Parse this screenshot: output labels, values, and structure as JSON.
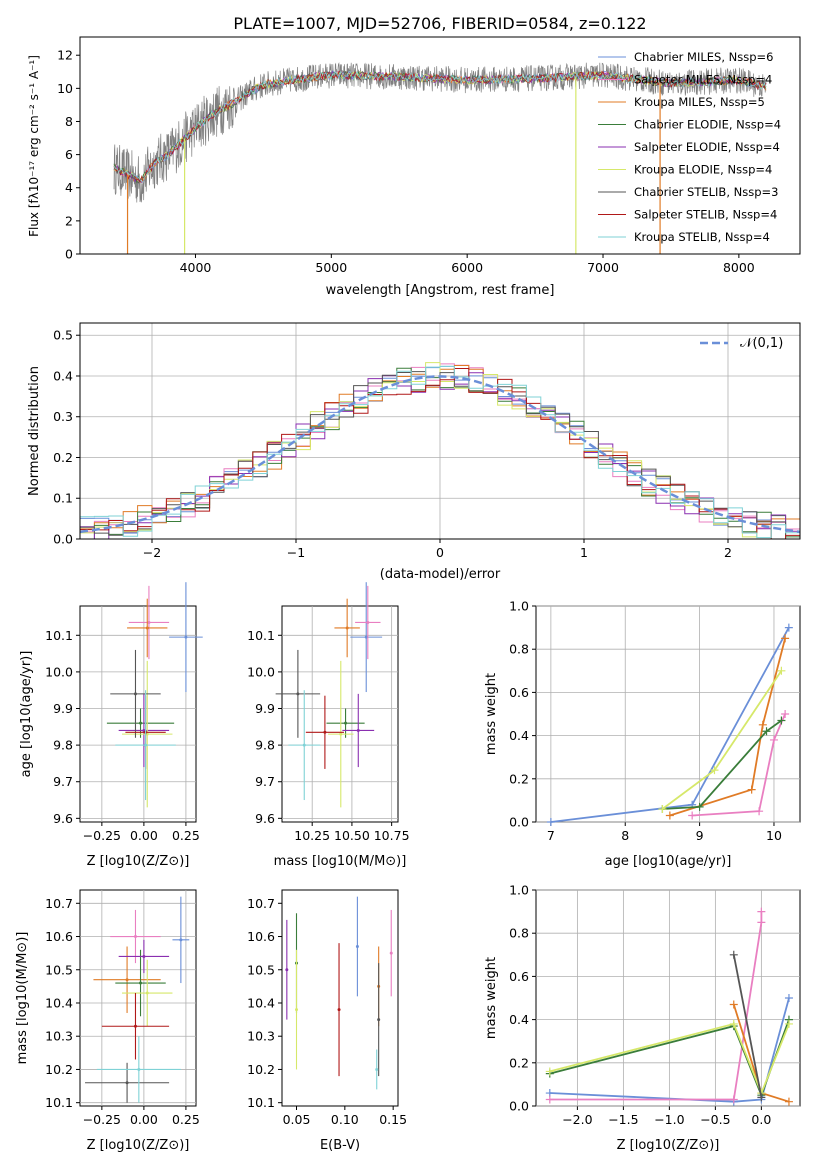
{
  "title": "PLATE=1007, MJD=52706, FIBERID=0584, z=0.122",
  "colors": {
    "chabrier_miles": "#6a8fd8",
    "salpeter_miles": "#e97fc1",
    "kroupa_miles": "#e07b26",
    "chabrier_elodie": "#3a7d3a",
    "salpeter_elodie": "#8a2fb0",
    "kroupa_elodie": "#d6e86a",
    "chabrier_stelib": "#555555",
    "salpeter_stelib": "#b01818",
    "kroupa_stelib": "#7fd2d6",
    "data": "#808080",
    "grid": "#b0b0b0"
  },
  "chart_data": [
    {
      "type": "line",
      "id": "spectrum",
      "xlabel": "wavelength [Angstrom, rest frame]",
      "ylabel": "Flux [f",
      "ylabel_full": "Flux [fλ10⁻¹⁷ erg cm⁻² s⁻¹ A⁻¹]",
      "xlim": [
        3150,
        8450
      ],
      "ylim": [
        0,
        13.1
      ],
      "xticks": [
        "4000",
        "5000",
        "6000",
        "7000",
        "8000"
      ],
      "yticks": [
        "0",
        "2",
        "4",
        "6",
        "8",
        "10",
        "12"
      ],
      "continuum": {
        "x": [
          3400,
          3500,
          3600,
          3700,
          3800,
          3900,
          4000,
          4100,
          4200,
          4300,
          4400,
          4500,
          4700,
          5000,
          5500,
          6000,
          6500,
          7000,
          7500,
          8000,
          8200
        ],
        "y": [
          5.2,
          4.8,
          4.4,
          5.5,
          6.0,
          6.8,
          7.6,
          8.3,
          8.8,
          9.2,
          9.8,
          10.2,
          10.5,
          10.8,
          10.7,
          10.5,
          10.6,
          10.8,
          10.3,
          10.5,
          10.1
        ]
      },
      "legend_position": "upper right",
      "legend": [
        "Chabrier MILES, N_SSP=6",
        "Salpeter MILES, N_SSP=4",
        "Kroupa MILES, N_SSP=5",
        "Chabrier ELODIE, N_SSP=4",
        "Salpeter ELODIE, N_SSP=4",
        "Kroupa ELODIE, N_SSP=4",
        "Chabrier STELIB, N_SSP=3",
        "Salpeter STELIB, N_SSP=4",
        "Kroupa STELIB, N_SSP=4"
      ]
    },
    {
      "type": "line",
      "id": "residuals",
      "xlabel": "(data-model)/error",
      "ylabel": "Normed distribution",
      "xlim": [
        -2.5,
        2.5
      ],
      "ylim": [
        0,
        0.53
      ],
      "xticks": [
        "−2",
        "−1",
        "0",
        "1",
        "2"
      ],
      "yticks": [
        "0.0",
        "0.1",
        "0.2",
        "0.3",
        "0.4",
        "0.5"
      ],
      "legend": [
        "𝒩(0,1)"
      ],
      "legend_position": "upper right"
    },
    {
      "type": "scatter",
      "id": "age_vs_Z",
      "xlabel": "Z [log10(Z/Z⊙)]",
      "ylabel": "age  [log10(age/yr)]",
      "xlim": [
        -0.38,
        0.31
      ],
      "ylim": [
        9.59,
        10.18
      ],
      "xticks": [
        "−0.25",
        "0.00",
        "0.25"
      ],
      "yticks": [
        "9.6",
        "9.7",
        "9.8",
        "9.9",
        "10.0",
        "10.1"
      ],
      "points": [
        {
          "x": 0.25,
          "y": 10.095
        },
        {
          "x": 0.03,
          "y": 10.135
        },
        {
          "x": 0.02,
          "y": 10.12
        },
        {
          "x": -0.02,
          "y": 9.86
        },
        {
          "x": 0.0,
          "y": 9.84
        },
        {
          "x": 0.02,
          "y": 9.83
        },
        {
          "x": -0.05,
          "y": 9.94
        },
        {
          "x": 0.01,
          "y": 9.835
        },
        {
          "x": 0.01,
          "y": 9.8
        }
      ]
    },
    {
      "type": "scatter",
      "id": "age_vs_mass",
      "xlabel": "mass [log10(M/M⊙)]",
      "ylabel": "",
      "xlim": [
        10.06,
        10.79
      ],
      "ylim": [
        9.59,
        10.18
      ],
      "xticks": [
        "10.25",
        "10.50",
        "10.75"
      ],
      "yticks": [
        "9.6",
        "9.7",
        "9.8",
        "9.9",
        "10.0",
        "10.1"
      ],
      "points": [
        {
          "x": 10.59,
          "y": 10.095
        },
        {
          "x": 10.6,
          "y": 10.135
        },
        {
          "x": 10.47,
          "y": 10.12
        },
        {
          "x": 10.46,
          "y": 9.86
        },
        {
          "x": 10.54,
          "y": 9.84
        },
        {
          "x": 10.43,
          "y": 9.83
        },
        {
          "x": 10.16,
          "y": 9.94
        },
        {
          "x": 10.33,
          "y": 9.835
        },
        {
          "x": 10.2,
          "y": 9.8
        }
      ]
    },
    {
      "type": "line",
      "id": "mass_weight_vs_age",
      "xlabel": "age  [log10(age/yr)]",
      "ylabel": "mass weight",
      "xlim": [
        6.8,
        10.35
      ],
      "ylim": [
        0,
        1.0
      ],
      "xticks": [
        "7",
        "8",
        "9",
        "10"
      ],
      "yticks": [
        "0.0",
        "0.2",
        "0.4",
        "0.6",
        "0.8",
        "1.0"
      ],
      "series": [
        {
          "x": [
            7.0,
            8.9,
            10.2
          ],
          "y": [
            0.0,
            0.08,
            0.9
          ]
        },
        {
          "x": [
            8.9,
            9.8,
            10.0,
            10.15
          ],
          "y": [
            0.03,
            0.05,
            0.38,
            0.5
          ]
        },
        {
          "x": [
            8.6,
            9.7,
            9.85,
            10.15
          ],
          "y": [
            0.03,
            0.15,
            0.45,
            0.85
          ]
        },
        {
          "x": [
            8.5,
            9.0,
            9.9,
            10.1
          ],
          "y": [
            0.06,
            0.07,
            0.42,
            0.47
          ]
        },
        {
          "x": [
            8.5,
            9.2,
            10.1
          ],
          "y": [
            0.06,
            0.24,
            0.7
          ]
        }
      ]
    },
    {
      "type": "scatter",
      "id": "mass_vs_Z",
      "xlabel": "Z [log10(Z/Z⊙)]",
      "ylabel": "mass [log10(M/M⊙)]",
      "xlim": [
        -0.38,
        0.31
      ],
      "ylim": [
        10.09,
        10.74
      ],
      "xticks": [
        "−0.25",
        "0.00",
        "0.25"
      ],
      "yticks": [
        "10.1",
        "10.2",
        "10.3",
        "10.4",
        "10.5",
        "10.6",
        "10.7"
      ],
      "points": [
        {
          "x": 0.22,
          "y": 10.59
        },
        {
          "x": -0.05,
          "y": 10.6
        },
        {
          "x": -0.1,
          "y": 10.47
        },
        {
          "x": -0.02,
          "y": 10.46
        },
        {
          "x": 0.0,
          "y": 10.54
        },
        {
          "x": 0.02,
          "y": 10.43
        },
        {
          "x": -0.1,
          "y": 10.16
        },
        {
          "x": -0.05,
          "y": 10.33
        },
        {
          "x": -0.03,
          "y": 10.2
        }
      ]
    },
    {
      "type": "scatter",
      "id": "mass_vs_ebv",
      "xlabel": "E(B-V)",
      "ylabel": "",
      "xlim": [
        0.035,
        0.155
      ],
      "ylim": [
        10.09,
        10.74
      ],
      "xticks": [
        "0.05",
        "0.10",
        "0.15"
      ],
      "yticks": [
        "10.1",
        "10.2",
        "10.3",
        "10.4",
        "10.5",
        "10.6",
        "10.7"
      ],
      "points": [
        {
          "x": 0.113,
          "y": 10.57
        },
        {
          "x": 0.148,
          "y": 10.55
        },
        {
          "x": 0.135,
          "y": 10.45
        },
        {
          "x": 0.05,
          "y": 10.52
        },
        {
          "x": 0.04,
          "y": 10.5
        },
        {
          "x": 0.05,
          "y": 10.38
        },
        {
          "x": 0.135,
          "y": 10.35
        },
        {
          "x": 0.094,
          "y": 10.38
        },
        {
          "x": 0.133,
          "y": 10.2
        }
      ]
    },
    {
      "type": "line",
      "id": "mass_weight_vs_Z",
      "xlabel": "Z [log10(Z/Z⊙)]",
      "ylabel": "mass weight",
      "xlim": [
        -2.45,
        0.42
      ],
      "ylim": [
        0,
        1.0
      ],
      "xticks": [
        "−2.0",
        "−1.5",
        "−1.0",
        "−0.5",
        "0.0"
      ],
      "yticks": [
        "0.0",
        "0.2",
        "0.4",
        "0.6",
        "0.8",
        "1.0"
      ],
      "series": [
        {
          "x": [
            -2.3,
            -0.3,
            0.0,
            0.3
          ],
          "y": [
            0.06,
            0.02,
            0.03,
            0.5
          ]
        },
        {
          "x": [
            -2.3,
            -0.3,
            0.0,
            0.0
          ],
          "y": [
            0.03,
            0.03,
            0.85,
            0.9
          ]
        },
        {
          "x": [
            -0.3,
            0.0,
            0.3
          ],
          "y": [
            0.47,
            0.06,
            0.02
          ]
        },
        {
          "x": [
            -2.3,
            -0.3,
            0.0,
            0.3
          ],
          "y": [
            0.15,
            0.37,
            0.05,
            0.4
          ]
        },
        {
          "x": [
            -2.3,
            -0.3,
            0.0,
            0.3
          ],
          "y": [
            0.16,
            0.38,
            0.06,
            0.38
          ]
        },
        {
          "x": [
            -0.3,
            0.0
          ],
          "y": [
            0.7,
            0.04
          ]
        }
      ]
    }
  ]
}
